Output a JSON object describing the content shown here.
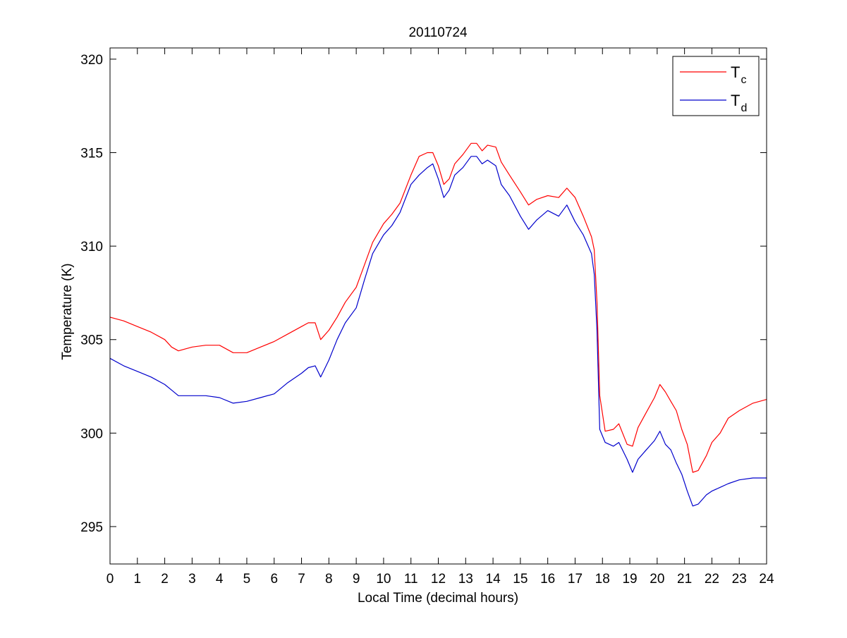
{
  "chart_data": {
    "type": "line",
    "title": "20110724",
    "xlabel": "Local Time (decimal hours)",
    "ylabel": "Temperature (K)",
    "xlim": [
      0,
      24
    ],
    "ylim": [
      293,
      320.6
    ],
    "xticks": [
      0,
      1,
      2,
      3,
      4,
      5,
      6,
      7,
      8,
      9,
      10,
      11,
      12,
      13,
      14,
      15,
      16,
      17,
      18,
      19,
      20,
      21,
      22,
      23,
      24
    ],
    "xtick_labels": [
      "0",
      "1",
      "2",
      "3",
      "4",
      "5",
      "6",
      "7",
      "8",
      "9",
      "10",
      "11",
      "12",
      "13",
      "14",
      "15",
      "16",
      "17",
      "18",
      "19",
      "20",
      "21",
      "22",
      "23",
      "24"
    ],
    "yticks": [
      295,
      300,
      305,
      310,
      315,
      320
    ],
    "ytick_labels": [
      "295",
      "300",
      "305",
      "310",
      "315",
      "320"
    ],
    "grid": false,
    "legend_position": "top-right",
    "series": [
      {
        "name": "T",
        "subscript": "c",
        "color": "#ff0000",
        "x": [
          0,
          0.5,
          1,
          1.5,
          2,
          2.25,
          2.5,
          3,
          3.5,
          4,
          4.5,
          5,
          5.5,
          6,
          6.5,
          7,
          7.25,
          7.5,
          7.7,
          8,
          8.3,
          8.6,
          9,
          9.3,
          9.6,
          10,
          10.3,
          10.6,
          11,
          11.3,
          11.6,
          11.8,
          12,
          12.2,
          12.4,
          12.6,
          12.9,
          13.2,
          13.4,
          13.6,
          13.8,
          14.1,
          14.3,
          14.6,
          15,
          15.3,
          15.6,
          16,
          16.4,
          16.7,
          17,
          17.3,
          17.6,
          17.7,
          17.8,
          17.9,
          18.1,
          18.4,
          18.6,
          18.9,
          19.1,
          19.3,
          19.6,
          19.9,
          20.1,
          20.3,
          20.5,
          20.7,
          20.9,
          21.1,
          21.3,
          21.5,
          21.8,
          22,
          22.3,
          22.6,
          23,
          23.5,
          24
        ],
        "y": [
          306.2,
          306.0,
          305.7,
          305.4,
          305.0,
          304.6,
          304.4,
          304.6,
          304.7,
          304.7,
          304.3,
          304.3,
          304.6,
          304.9,
          305.3,
          305.7,
          305.9,
          305.9,
          305.0,
          305.5,
          306.2,
          307.0,
          307.8,
          309.0,
          310.2,
          311.2,
          311.7,
          312.3,
          313.8,
          314.8,
          315.0,
          315.0,
          314.3,
          313.3,
          313.6,
          314.4,
          314.9,
          315.5,
          315.5,
          315.1,
          315.4,
          315.3,
          314.5,
          313.8,
          312.9,
          312.2,
          312.5,
          312.7,
          312.6,
          313.1,
          312.6,
          311.6,
          310.5,
          309.8,
          307.0,
          302.0,
          300.1,
          300.2,
          300.5,
          299.4,
          299.3,
          300.3,
          301.1,
          301.9,
          302.6,
          302.2,
          301.7,
          301.2,
          300.2,
          299.4,
          297.9,
          298.0,
          298.8,
          299.5,
          300.0,
          300.8,
          301.2,
          301.6,
          301.8
        ]
      },
      {
        "name": "T",
        "subscript": "d",
        "color": "#0000cc",
        "x": [
          0,
          0.5,
          1,
          1.5,
          2,
          2.25,
          2.5,
          3,
          3.5,
          4,
          4.5,
          5,
          5.5,
          6,
          6.5,
          7,
          7.25,
          7.5,
          7.7,
          8,
          8.3,
          8.6,
          9,
          9.3,
          9.6,
          10,
          10.3,
          10.6,
          11,
          11.3,
          11.6,
          11.8,
          12,
          12.2,
          12.4,
          12.6,
          12.9,
          13.2,
          13.4,
          13.6,
          13.8,
          14.1,
          14.3,
          14.6,
          15,
          15.3,
          15.6,
          16,
          16.4,
          16.7,
          17,
          17.3,
          17.6,
          17.7,
          17.8,
          17.9,
          18.1,
          18.4,
          18.6,
          18.9,
          19.1,
          19.3,
          19.6,
          19.9,
          20.1,
          20.3,
          20.5,
          20.7,
          20.9,
          21.1,
          21.3,
          21.5,
          21.8,
          22,
          22.3,
          22.6,
          23,
          23.5,
          24
        ],
        "y": [
          304.0,
          303.6,
          303.3,
          303.0,
          302.6,
          302.3,
          302.0,
          302.0,
          302.0,
          301.9,
          301.6,
          301.7,
          301.9,
          302.1,
          302.7,
          303.2,
          303.5,
          303.6,
          303.0,
          303.9,
          305.0,
          305.9,
          306.7,
          308.2,
          309.6,
          310.6,
          311.1,
          311.8,
          313.3,
          313.8,
          314.2,
          314.4,
          313.6,
          312.6,
          313.0,
          313.8,
          314.2,
          314.8,
          314.8,
          314.4,
          314.6,
          314.3,
          313.3,
          312.7,
          311.6,
          310.9,
          311.4,
          311.9,
          311.6,
          312.2,
          311.3,
          310.6,
          309.6,
          308.5,
          305.5,
          300.2,
          299.5,
          299.3,
          299.5,
          298.6,
          297.9,
          298.6,
          299.1,
          299.6,
          300.1,
          299.4,
          299.1,
          298.4,
          297.8,
          296.9,
          296.1,
          296.2,
          296.7,
          296.9,
          297.1,
          297.3,
          297.5,
          297.6,
          297.6
        ]
      }
    ]
  }
}
